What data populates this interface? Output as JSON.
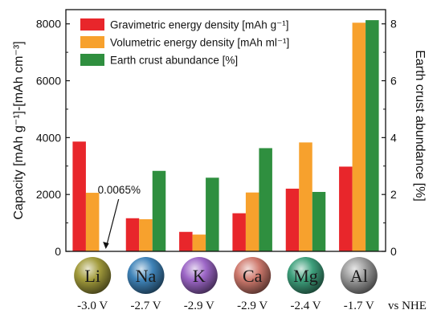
{
  "chart_data": {
    "type": "bar",
    "categories": [
      "Li",
      "Na",
      "K",
      "Ca",
      "Mg",
      "Al"
    ],
    "series": [
      {
        "name": "Gravimetric energy density [mAh g⁻¹]",
        "axis": "left",
        "color": "#e8262b",
        "values": [
          3860,
          1165,
          685,
          1340,
          2205,
          2980
        ]
      },
      {
        "name": "Volumetric energy density [mAh ml⁻¹]",
        "axis": "left",
        "color": "#f7a12d",
        "values": [
          2060,
          1130,
          590,
          2070,
          3830,
          8040
        ]
      },
      {
        "name": "Earth crust abundance [%]",
        "axis": "right",
        "color": "#2f8f3f",
        "values": [
          0.0065,
          2.83,
          2.59,
          3.63,
          2.09,
          8.13
        ]
      }
    ],
    "left_axis": {
      "label": "Capacity [mAh g⁻¹]-[mAh cm⁻³]",
      "ylim": [
        0,
        8500
      ],
      "ticks": [
        "0",
        "2000",
        "4000",
        "6000",
        "8000"
      ]
    },
    "right_axis": {
      "label": "Earth crust abundance [%]",
      "ylim": [
        0,
        8.5
      ],
      "ticks": [
        "0",
        "2",
        "4",
        "6",
        "8"
      ]
    },
    "annotation": "0.0065%",
    "legend_placement": "top-center",
    "category_markers": [
      {
        "symbol": "Li",
        "color": "#a29b3c",
        "potential": "-3.0 V"
      },
      {
        "symbol": "Na",
        "color": "#3f83b8",
        "potential": "-2.7 V"
      },
      {
        "symbol": "K",
        "color": "#9c66c6",
        "potential": "-2.9 V"
      },
      {
        "symbol": "Ca",
        "color": "#cf7a6e",
        "potential": "-2.9 V"
      },
      {
        "symbol": "Mg",
        "color": "#3ea07c",
        "potential": "-2.4 V"
      },
      {
        "symbol": "Al",
        "color": "#9c9c9c",
        "potential": "-1.7 V"
      }
    ],
    "potential_reference": "vs NHE"
  }
}
